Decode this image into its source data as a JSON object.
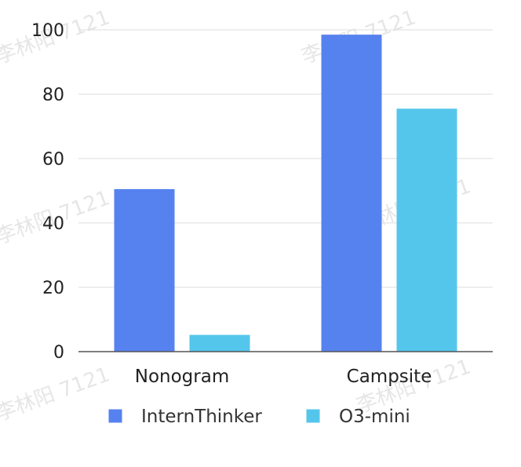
{
  "chart_data": {
    "type": "bar",
    "categories": [
      "Nonogram",
      "Campsite"
    ],
    "series": [
      {
        "name": "InternThinker",
        "values": [
          50.5,
          98.5
        ],
        "color": "#5682ef"
      },
      {
        "name": "O3-mini",
        "values": [
          5.2,
          75.5
        ],
        "color": "#55c6eb"
      }
    ],
    "ylim": [
      0,
      100
    ],
    "yticks": [
      0,
      20,
      40,
      60,
      80,
      100
    ],
    "grid": true,
    "legend_position": "bottom"
  },
  "watermark": {
    "text": "李林阳 7121",
    "color": "#e6e6e6"
  },
  "colors": {
    "gridline": "#dddddd",
    "axis": "#555555",
    "text": "#222222"
  }
}
